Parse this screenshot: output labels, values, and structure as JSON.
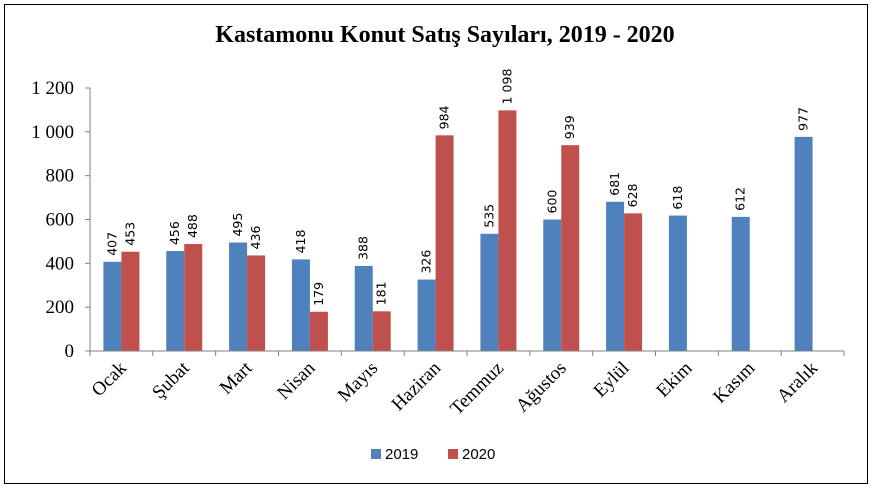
{
  "chart_data": {
    "type": "bar",
    "title": "Kastamonu Konut Satış Sayıları, 2019 - 2020",
    "xlabel": "",
    "ylabel": "",
    "ylim": [
      0,
      1200
    ],
    "yticks": [
      0,
      200,
      400,
      600,
      800,
      1000,
      1200
    ],
    "ytick_labels": [
      "0",
      "200",
      "400",
      "600",
      "800",
      "1 000",
      "1 200"
    ],
    "grid": false,
    "legend_position": "bottom",
    "categories": [
      "Ocak",
      "Şubat",
      "Mart",
      "Nisan",
      "Mayıs",
      "Haziran",
      "Temmuz",
      "Ağustos",
      "Eylül",
      "Ekim",
      "Kasım",
      "Aralık"
    ],
    "series": [
      {
        "name": "2019",
        "color": "#4f81bd",
        "values": [
          407,
          456,
          495,
          418,
          388,
          326,
          535,
          600,
          681,
          618,
          612,
          977
        ],
        "labels": [
          "407",
          "456",
          "495",
          "418",
          "388",
          "326",
          "535",
          "600",
          "681",
          "618",
          "612",
          "977"
        ]
      },
      {
        "name": "2020",
        "color": "#c0504d",
        "values": [
          453,
          488,
          436,
          179,
          181,
          984,
          1098,
          939,
          628,
          null,
          null,
          null
        ],
        "labels": [
          "453",
          "488",
          "436",
          "179",
          "181",
          "984",
          "1 098",
          "939",
          "628",
          null,
          null,
          null
        ]
      }
    ]
  }
}
